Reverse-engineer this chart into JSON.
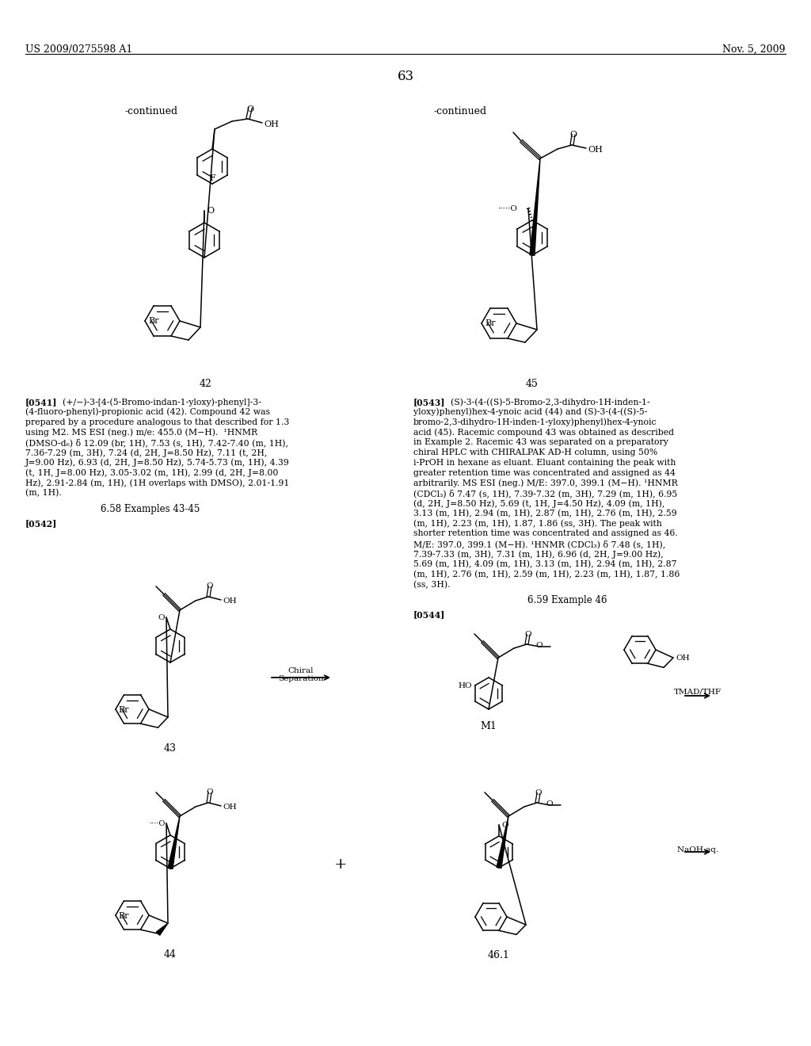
{
  "page_header_left": "US 2009/0275598 A1",
  "page_header_right": "Nov. 5, 2009",
  "page_number": "63",
  "continued_label_left": "-continued",
  "continued_label_right": "-continued",
  "background_color": "#ffffff",
  "text_color": "#000000"
}
